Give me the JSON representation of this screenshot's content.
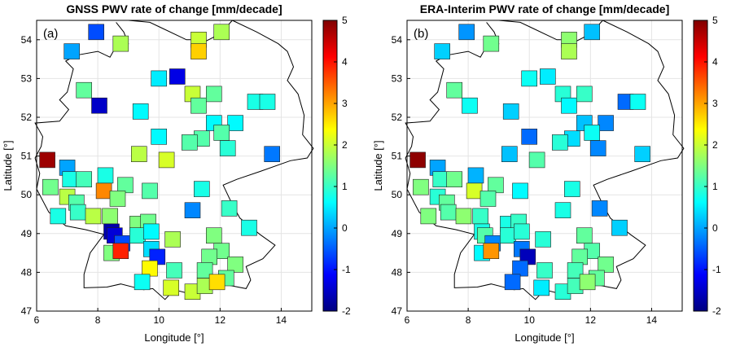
{
  "chart_data": [
    {
      "type": "map-scatter",
      "panel_label": "(a)",
      "title": "GNSS PWV rate of change [mm/decade]",
      "xlabel": "Longitude [°]",
      "ylabel": "Latitude [°]",
      "xlim": [
        6,
        15
      ],
      "ylim": [
        47,
        54.5
      ],
      "xticks": [
        6,
        8,
        10,
        12,
        14
      ],
      "yticks": [
        47,
        48,
        49,
        50,
        51,
        52,
        53,
        54
      ],
      "grid": true,
      "colorbar": {
        "range": [
          -2,
          5
        ],
        "ticks": [
          -2,
          -1,
          0,
          1,
          2,
          3,
          4,
          5
        ],
        "colormap": "jet"
      },
      "stations": [
        {
          "lon": 7.95,
          "lat": 54.2,
          "value": -0.6
        },
        {
          "lon": 7.15,
          "lat": 53.7,
          "value": 0.0
        },
        {
          "lon": 8.75,
          "lat": 53.9,
          "value": 1.8
        },
        {
          "lon": 11.3,
          "lat": 54.0,
          "value": 2.0
        },
        {
          "lon": 12.05,
          "lat": 54.2,
          "value": 1.8
        },
        {
          "lon": 11.3,
          "lat": 53.7,
          "value": 2.7
        },
        {
          "lon": 7.55,
          "lat": 52.7,
          "value": 1.3
        },
        {
          "lon": 10.0,
          "lat": 53.0,
          "value": 0.5
        },
        {
          "lon": 10.6,
          "lat": 53.05,
          "value": -1.3
        },
        {
          "lon": 8.05,
          "lat": 52.3,
          "value": -1.5
        },
        {
          "lon": 9.4,
          "lat": 52.15,
          "value": 0.6
        },
        {
          "lon": 11.1,
          "lat": 52.6,
          "value": 2.0
        },
        {
          "lon": 11.3,
          "lat": 52.3,
          "value": 1.3
        },
        {
          "lon": 11.8,
          "lat": 52.6,
          "value": 1.3
        },
        {
          "lon": 13.15,
          "lat": 52.4,
          "value": 0.8
        },
        {
          "lon": 13.55,
          "lat": 52.4,
          "value": 0.8
        },
        {
          "lon": 11.8,
          "lat": 51.85,
          "value": 0.6
        },
        {
          "lon": 12.5,
          "lat": 51.85,
          "value": 0.6
        },
        {
          "lon": 6.35,
          "lat": 50.9,
          "value": 4.8
        },
        {
          "lon": 7.0,
          "lat": 50.7,
          "value": 0.0
        },
        {
          "lon": 9.35,
          "lat": 51.05,
          "value": 1.9
        },
        {
          "lon": 10.0,
          "lat": 51.5,
          "value": 0.6
        },
        {
          "lon": 11.4,
          "lat": 51.45,
          "value": 1.2
        },
        {
          "lon": 11.0,
          "lat": 51.35,
          "value": 1.2
        },
        {
          "lon": 12.05,
          "lat": 51.6,
          "value": 1.2
        },
        {
          "lon": 12.25,
          "lat": 51.2,
          "value": 0.9
        },
        {
          "lon": 13.7,
          "lat": 51.05,
          "value": -0.3
        },
        {
          "lon": 10.25,
          "lat": 50.9,
          "value": 2.1
        },
        {
          "lon": 6.45,
          "lat": 50.2,
          "value": 1.4
        },
        {
          "lon": 7.1,
          "lat": 50.4,
          "value": 0.8
        },
        {
          "lon": 7.55,
          "lat": 50.4,
          "value": 1.1
        },
        {
          "lon": 8.25,
          "lat": 50.5,
          "value": 0.8
        },
        {
          "lon": 7.0,
          "lat": 49.95,
          "value": 1.9
        },
        {
          "lon": 7.3,
          "lat": 49.8,
          "value": 1.2
        },
        {
          "lon": 8.2,
          "lat": 50.1,
          "value": 3.2
        },
        {
          "lon": 8.9,
          "lat": 50.25,
          "value": 1.3
        },
        {
          "lon": 8.65,
          "lat": 49.9,
          "value": 1.5
        },
        {
          "lon": 9.7,
          "lat": 50.1,
          "value": 1.2
        },
        {
          "lon": 11.4,
          "lat": 50.15,
          "value": 0.8
        },
        {
          "lon": 12.3,
          "lat": 49.65,
          "value": 1.0
        },
        {
          "lon": 6.7,
          "lat": 49.45,
          "value": 0.8
        },
        {
          "lon": 7.35,
          "lat": 49.55,
          "value": 1.0
        },
        {
          "lon": 7.85,
          "lat": 49.45,
          "value": 1.9
        },
        {
          "lon": 8.4,
          "lat": 49.45,
          "value": 1.6
        },
        {
          "lon": 9.3,
          "lat": 49.25,
          "value": 1.5
        },
        {
          "lon": 9.65,
          "lat": 49.3,
          "value": 1.4
        },
        {
          "lon": 11.1,
          "lat": 49.6,
          "value": -0.2
        },
        {
          "lon": 12.95,
          "lat": 49.15,
          "value": 0.8
        },
        {
          "lon": 8.45,
          "lat": 49.05,
          "value": -1.7
        },
        {
          "lon": 8.55,
          "lat": 48.95,
          "value": -1.4
        },
        {
          "lon": 8.45,
          "lat": 48.5,
          "value": 1.5
        },
        {
          "lon": 8.8,
          "lat": 48.75,
          "value": -0.6
        },
        {
          "lon": 9.3,
          "lat": 48.95,
          "value": 0.9
        },
        {
          "lon": 9.75,
          "lat": 49.05,
          "value": 0.6
        },
        {
          "lon": 9.75,
          "lat": 48.6,
          "value": 0.4
        },
        {
          "lon": 10.45,
          "lat": 48.85,
          "value": 1.8
        },
        {
          "lon": 11.8,
          "lat": 48.95,
          "value": 1.5
        },
        {
          "lon": 12.05,
          "lat": 48.55,
          "value": 1.4
        },
        {
          "lon": 11.65,
          "lat": 48.4,
          "value": 1.4
        },
        {
          "lon": 12.5,
          "lat": 48.2,
          "value": 1.5
        },
        {
          "lon": 8.75,
          "lat": 48.55,
          "value": 3.9
        },
        {
          "lon": 9.95,
          "lat": 48.4,
          "value": -0.9
        },
        {
          "lon": 9.7,
          "lat": 48.1,
          "value": 2.4
        },
        {
          "lon": 9.45,
          "lat": 47.75,
          "value": 0.7
        },
        {
          "lon": 10.5,
          "lat": 48.05,
          "value": 1.1
        },
        {
          "lon": 11.5,
          "lat": 48.05,
          "value": 1.3
        },
        {
          "lon": 12.2,
          "lat": 47.85,
          "value": 1.3
        },
        {
          "lon": 10.4,
          "lat": 47.6,
          "value": 2.1
        },
        {
          "lon": 11.1,
          "lat": 47.5,
          "value": 2.0
        },
        {
          "lon": 11.5,
          "lat": 47.65,
          "value": 1.8
        },
        {
          "lon": 11.9,
          "lat": 47.75,
          "value": 2.6
        }
      ]
    },
    {
      "type": "map-scatter",
      "panel_label": "(b)",
      "title": "ERA-Interim PWV rate of change [mm/decade]",
      "xlabel": "Longitude [°]",
      "ylabel": "Latitude [°]",
      "xlim": [
        6,
        15
      ],
      "ylim": [
        47,
        54.5
      ],
      "xticks": [
        6,
        8,
        10,
        12,
        14
      ],
      "yticks": [
        47,
        48,
        49,
        50,
        51,
        52,
        53,
        54
      ],
      "grid": true,
      "colorbar": {
        "range": [
          -2,
          5
        ],
        "ticks": [
          -2,
          -1,
          0,
          1,
          2,
          3,
          4,
          5
        ],
        "colormap": "jet"
      },
      "stations": [
        {
          "lon": 7.95,
          "lat": 54.2,
          "value": -0.1
        },
        {
          "lon": 7.15,
          "lat": 53.7,
          "value": 0.3
        },
        {
          "lon": 8.75,
          "lat": 53.9,
          "value": 1.4
        },
        {
          "lon": 11.3,
          "lat": 54.0,
          "value": 1.6
        },
        {
          "lon": 12.05,
          "lat": 54.2,
          "value": 0.2
        },
        {
          "lon": 11.3,
          "lat": 53.7,
          "value": 1.8
        },
        {
          "lon": 7.55,
          "lat": 52.7,
          "value": 1.3
        },
        {
          "lon": 10.0,
          "lat": 53.0,
          "value": 0.7
        },
        {
          "lon": 10.6,
          "lat": 53.05,
          "value": 0.5
        },
        {
          "lon": 8.05,
          "lat": 52.3,
          "value": 0.7
        },
        {
          "lon": 9.4,
          "lat": 52.15,
          "value": 0.3
        },
        {
          "lon": 11.1,
          "lat": 52.6,
          "value": 0.9
        },
        {
          "lon": 11.3,
          "lat": 52.3,
          "value": 0.6
        },
        {
          "lon": 11.8,
          "lat": 52.6,
          "value": 1.0
        },
        {
          "lon": 13.15,
          "lat": 52.4,
          "value": -0.4
        },
        {
          "lon": 13.55,
          "lat": 52.4,
          "value": 0.7
        },
        {
          "lon": 11.8,
          "lat": 51.85,
          "value": 0.2
        },
        {
          "lon": 12.5,
          "lat": 51.85,
          "value": -0.2
        },
        {
          "lon": 6.35,
          "lat": 50.9,
          "value": 4.9
        },
        {
          "lon": 7.0,
          "lat": 50.7,
          "value": 0.0
        },
        {
          "lon": 9.35,
          "lat": 51.05,
          "value": 0.2
        },
        {
          "lon": 10.0,
          "lat": 51.5,
          "value": -0.4
        },
        {
          "lon": 11.4,
          "lat": 51.45,
          "value": 0.4
        },
        {
          "lon": 11.0,
          "lat": 51.35,
          "value": 0.9
        },
        {
          "lon": 12.05,
          "lat": 51.6,
          "value": 0.7
        },
        {
          "lon": 12.25,
          "lat": 51.2,
          "value": -0.2
        },
        {
          "lon": 13.7,
          "lat": 51.05,
          "value": 0.3
        },
        {
          "lon": 10.25,
          "lat": 50.9,
          "value": 1.2
        },
        {
          "lon": 6.45,
          "lat": 50.2,
          "value": 1.5
        },
        {
          "lon": 7.1,
          "lat": 50.4,
          "value": 1.0
        },
        {
          "lon": 7.55,
          "lat": 50.4,
          "value": 1.4
        },
        {
          "lon": 8.25,
          "lat": 50.5,
          "value": 0.1
        },
        {
          "lon": 7.0,
          "lat": 49.95,
          "value": 0.9
        },
        {
          "lon": 7.3,
          "lat": 49.8,
          "value": 1.3
        },
        {
          "lon": 8.2,
          "lat": 50.1,
          "value": 2.1
        },
        {
          "lon": 8.9,
          "lat": 50.25,
          "value": 1.3
        },
        {
          "lon": 8.65,
          "lat": 49.9,
          "value": 1.2
        },
        {
          "lon": 9.7,
          "lat": 50.1,
          "value": 0.6
        },
        {
          "lon": 11.4,
          "lat": 50.15,
          "value": 0.8
        },
        {
          "lon": 12.3,
          "lat": 49.65,
          "value": -0.2
        },
        {
          "lon": 6.7,
          "lat": 49.45,
          "value": 1.5
        },
        {
          "lon": 7.35,
          "lat": 49.55,
          "value": 1.2
        },
        {
          "lon": 7.85,
          "lat": 49.45,
          "value": 1.6
        },
        {
          "lon": 8.4,
          "lat": 49.45,
          "value": 1.0
        },
        {
          "lon": 9.3,
          "lat": 49.25,
          "value": 0.8
        },
        {
          "lon": 9.65,
          "lat": 49.3,
          "value": 1.0
        },
        {
          "lon": 11.1,
          "lat": 49.6,
          "value": 0.8
        },
        {
          "lon": 12.95,
          "lat": 49.15,
          "value": 0.3
        },
        {
          "lon": 8.45,
          "lat": 49.05,
          "value": 0.8
        },
        {
          "lon": 8.55,
          "lat": 48.95,
          "value": 1.2
        },
        {
          "lon": 8.45,
          "lat": 48.5,
          "value": 0.6
        },
        {
          "lon": 8.8,
          "lat": 48.75,
          "value": -0.2
        },
        {
          "lon": 9.3,
          "lat": 48.95,
          "value": 0.9
        },
        {
          "lon": 9.75,
          "lat": 49.05,
          "value": 0.9
        },
        {
          "lon": 9.75,
          "lat": 48.6,
          "value": -0.3
        },
        {
          "lon": 10.45,
          "lat": 48.85,
          "value": 0.9
        },
        {
          "lon": 11.8,
          "lat": 48.95,
          "value": 1.3
        },
        {
          "lon": 12.05,
          "lat": 48.55,
          "value": 1.2
        },
        {
          "lon": 11.65,
          "lat": 48.4,
          "value": 1.3
        },
        {
          "lon": 12.5,
          "lat": 48.2,
          "value": 1.4
        },
        {
          "lon": 8.75,
          "lat": 48.55,
          "value": 3.1
        },
        {
          "lon": 9.95,
          "lat": 48.4,
          "value": -1.6
        },
        {
          "lon": 9.7,
          "lat": 48.1,
          "value": -0.4
        },
        {
          "lon": 9.45,
          "lat": 47.75,
          "value": -0.4
        },
        {
          "lon": 10.5,
          "lat": 48.05,
          "value": 1.0
        },
        {
          "lon": 11.5,
          "lat": 48.05,
          "value": 1.1
        },
        {
          "lon": 12.2,
          "lat": 47.85,
          "value": 1.3
        },
        {
          "lon": 10.4,
          "lat": 47.6,
          "value": 0.5
        },
        {
          "lon": 11.1,
          "lat": 47.5,
          "value": 0.9
        },
        {
          "lon": 11.5,
          "lat": 47.65,
          "value": 1.1
        },
        {
          "lon": 11.9,
          "lat": 47.75,
          "value": 1.6
        }
      ]
    }
  ]
}
